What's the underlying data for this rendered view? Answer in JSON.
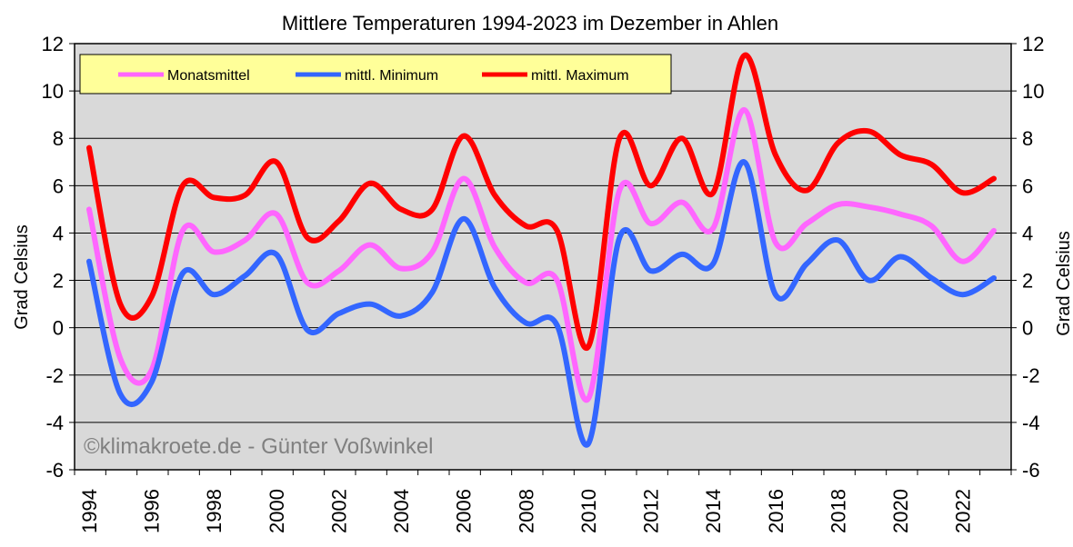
{
  "chart_data": {
    "type": "line",
    "title": "Mittlere Temperaturen 1994-2023 im Dezember in Ahlen",
    "ylabel": "Grad Celsius",
    "ylabel_right": "Grad Celsius",
    "xlabel": "",
    "ylim": [
      -6,
      12
    ],
    "yticks": [
      -6,
      -4,
      -2,
      0,
      2,
      4,
      6,
      8,
      10,
      12
    ],
    "xtick_labels": [
      "1994",
      "1996",
      "1998",
      "2000",
      "2002",
      "2004",
      "2006",
      "2008",
      "2010",
      "2012",
      "2014",
      "2016",
      "2018",
      "2020",
      "2022"
    ],
    "grid": true,
    "legend_position": "top-left",
    "watermark": "©klimakroete.de - Günter Voßwinkel",
    "x": [
      1994,
      1995,
      1996,
      1997,
      1998,
      1999,
      2000,
      2001,
      2002,
      2003,
      2004,
      2005,
      2006,
      2007,
      2008,
      2009,
      2010,
      2011,
      2012,
      2013,
      2014,
      2015,
      2016,
      2017,
      2018,
      2019,
      2020,
      2021,
      2022,
      2023
    ],
    "series": [
      {
        "name": "Monatsmittel",
        "color": "#ff66ff",
        "values": [
          5.0,
          -1.3,
          -1.8,
          4.1,
          3.2,
          3.7,
          4.8,
          1.9,
          2.4,
          3.5,
          2.5,
          3.2,
          6.3,
          3.4,
          1.9,
          2.0,
          -3.0,
          5.8,
          4.4,
          5.3,
          4.2,
          9.2,
          3.6,
          4.4,
          5.2,
          5.1,
          4.8,
          4.3,
          2.8,
          4.1
        ]
      },
      {
        "name": "mittl. Minimum",
        "color": "#3366ff",
        "values": [
          2.8,
          -2.8,
          -2.3,
          2.3,
          1.4,
          2.2,
          3.1,
          -0.1,
          0.6,
          1.0,
          0.5,
          1.5,
          4.6,
          1.7,
          0.2,
          0.1,
          -4.9,
          3.8,
          2.4,
          3.1,
          2.7,
          7.0,
          1.4,
          2.7,
          3.7,
          2.0,
          3.0,
          2.1,
          1.4,
          2.1
        ]
      },
      {
        "name": "mittl. Maximum",
        "color": "#ff0000",
        "values": [
          7.6,
          1.0,
          1.3,
          6.0,
          5.5,
          5.6,
          7.0,
          3.8,
          4.5,
          6.1,
          5.0,
          5.0,
          8.1,
          5.6,
          4.3,
          4.1,
          -0.8,
          8.0,
          6.0,
          8.0,
          5.7,
          11.5,
          7.3,
          5.8,
          7.8,
          8.3,
          7.3,
          6.9,
          5.7,
          6.3
        ]
      }
    ],
    "colors": {
      "plot_bg": "#d9d9d9",
      "legend_bg": "#ffff99",
      "watermark": "#808080"
    }
  }
}
